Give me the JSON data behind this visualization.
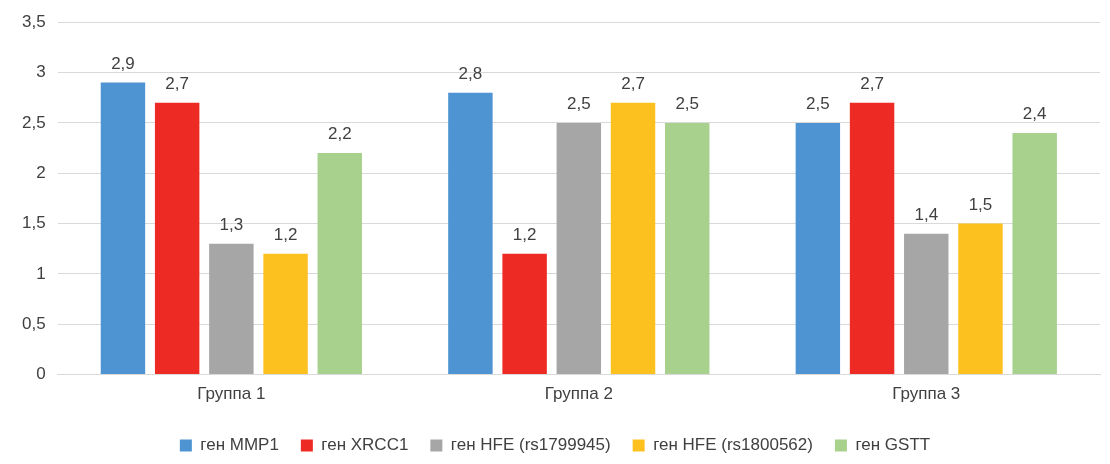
{
  "chart_data": {
    "type": "bar",
    "categories": [
      "Группа 1",
      "Группа 2",
      "Группа 3"
    ],
    "series": [
      {
        "name": "ген MMP1",
        "color": "#4e94d2",
        "values": [
          2.9,
          2.8,
          2.5
        ],
        "value_labels": [
          "2,9",
          "2,8",
          "2,5"
        ]
      },
      {
        "name": "ген XRCC1",
        "color": "#ee2a24",
        "values": [
          2.7,
          1.2,
          2.7
        ],
        "value_labels": [
          "2,7",
          "1,2",
          "2,7"
        ]
      },
      {
        "name": "ген HFE (rs1799945)",
        "color": "#a6a6a6",
        "values": [
          1.3,
          2.5,
          1.4
        ],
        "value_labels": [
          "1,3",
          "2,5",
          "1,4"
        ]
      },
      {
        "name": "ген HFE (rs1800562)",
        "color": "#fdc11f",
        "values": [
          1.2,
          2.7,
          1.5
        ],
        "value_labels": [
          "1,2",
          "2,7",
          "1,5"
        ]
      },
      {
        "name": "ген GSTT",
        "color": "#a9d18e",
        "values": [
          2.2,
          2.5,
          2.4
        ],
        "value_labels": [
          "2,2",
          "2,5",
          "2,4"
        ]
      }
    ],
    "ylim": [
      0,
      3.5
    ],
    "yticks": [
      0,
      {
        "value": 0.5,
        "label": "0,5"
      },
      1,
      {
        "value": 1.5,
        "label": "1,5"
      },
      2,
      {
        "value": 2.5,
        "label": "2,5"
      },
      3,
      {
        "value": 3.5,
        "label": "3,5"
      }
    ],
    "grid": "y",
    "legend": "bottom"
  }
}
